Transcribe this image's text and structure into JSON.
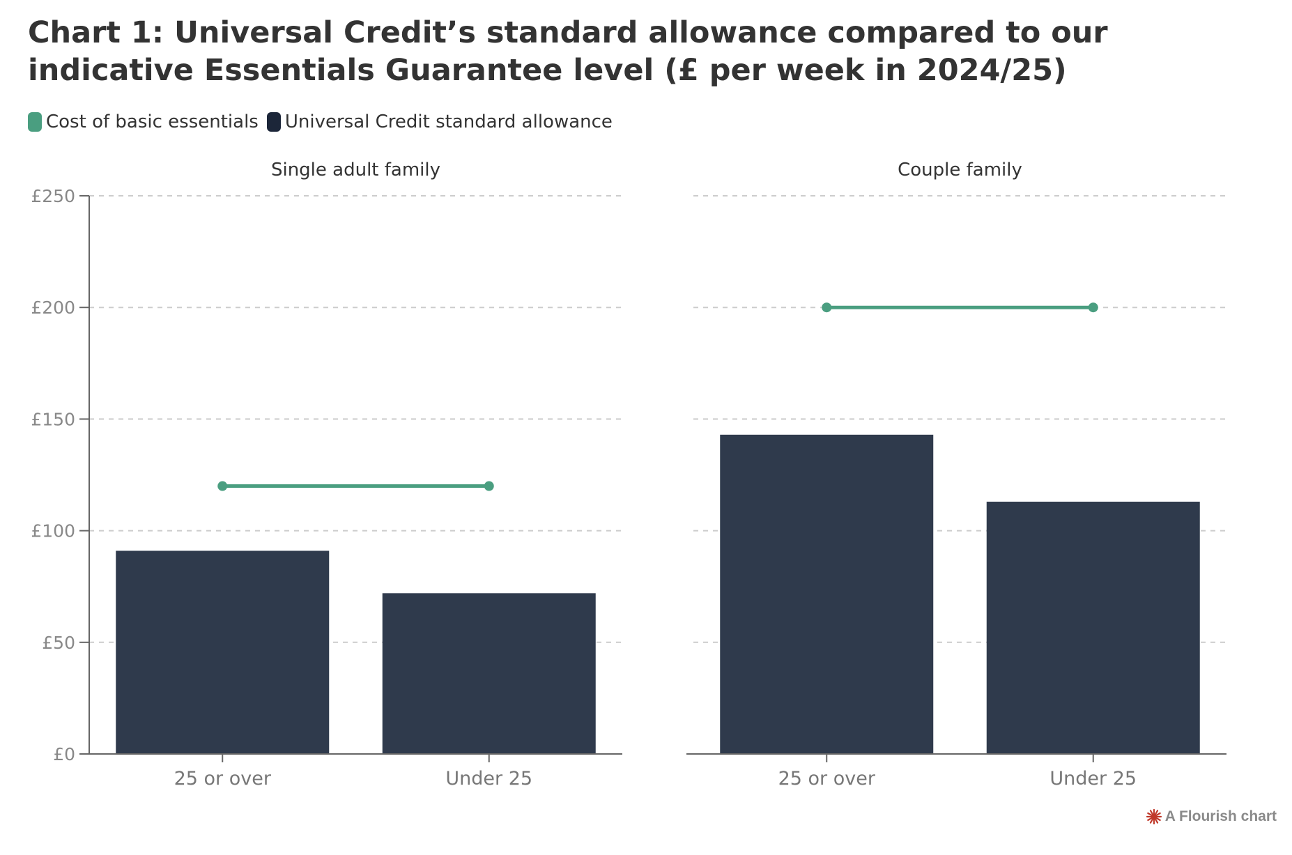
{
  "title": "Chart 1: Universal Credit’s standard allowance compared to our indicative Essentials Guarantee level (£ per week in 2024/25)",
  "legend": [
    {
      "label": "Cost of basic essentials",
      "color": "#4a9e80"
    },
    {
      "label": "Universal Credit standard allowance",
      "color": "#1c2639"
    }
  ],
  "credit": {
    "label": "A Flourish chart",
    "icon": "flourish-logo-icon",
    "color": "#c0392b"
  },
  "colors": {
    "bar": "#2f3a4c",
    "line": "#4a9e80",
    "grid": "#cccccc",
    "axis": "#666666"
  },
  "chart_data": {
    "type": "bar",
    "ylim": [
      0,
      250
    ],
    "yticks": [
      0,
      50,
      100,
      150,
      200,
      250
    ],
    "ytick_labels": [
      "£0",
      "£50",
      "£100",
      "£150",
      "£200",
      "£250"
    ],
    "grid": true,
    "legend_position": "top-left",
    "panels": [
      {
        "title": "Single adult family",
        "categories": [
          "25 or over",
          "Under 25"
        ],
        "series": [
          {
            "name": "Universal Credit standard allowance",
            "type": "bar",
            "values": [
              91,
              72
            ]
          },
          {
            "name": "Cost of basic essentials",
            "type": "line",
            "values": [
              120,
              120
            ]
          }
        ]
      },
      {
        "title": "Couple family",
        "categories": [
          "25 or over",
          "Under 25"
        ],
        "series": [
          {
            "name": "Universal Credit standard allowance",
            "type": "bar",
            "values": [
              143,
              113
            ]
          },
          {
            "name": "Cost of basic essentials",
            "type": "line",
            "values": [
              200,
              200
            ]
          }
        ]
      }
    ]
  }
}
